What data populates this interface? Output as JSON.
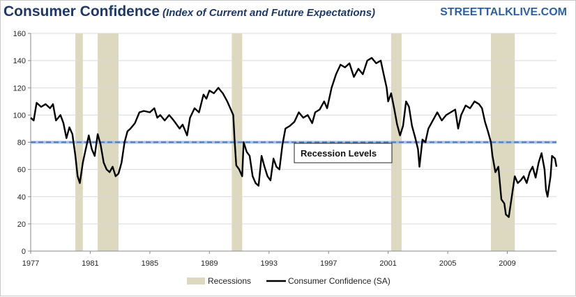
{
  "chart_data": {
    "type": "line",
    "title": "Consumer Confidence",
    "subtitle": "(Index of Current and Future Expectations)",
    "site": "STREETTALKLIVE.COM",
    "xlim": [
      1977,
      2012.3
    ],
    "ylim": [
      0,
      160
    ],
    "x_ticks": [
      1977,
      1981,
      1985,
      1989,
      1993,
      1997,
      2001,
      2005,
      2009
    ],
    "y_ticks": [
      0,
      20,
      40,
      60,
      80,
      100,
      120,
      140,
      160
    ],
    "grid": "horizontal",
    "recession_level": 80,
    "annotation": "Recession Levels",
    "legend": {
      "position": "bottom",
      "recessions_label": "Recessions",
      "series_label": "Consumer Confidence (SA)"
    },
    "recessions": [
      [
        1980.0,
        1980.5
      ],
      [
        1981.5,
        1982.9
      ],
      [
        1990.5,
        1991.2
      ],
      [
        2001.2,
        2001.9
      ],
      [
        2007.9,
        2009.5
      ]
    ],
    "series": [
      {
        "name": "Consumer Confidence (SA)",
        "color": "#000000",
        "points": [
          [
            1977.0,
            98
          ],
          [
            1977.2,
            96
          ],
          [
            1977.4,
            109
          ],
          [
            1977.7,
            106
          ],
          [
            1978.0,
            108
          ],
          [
            1978.3,
            105
          ],
          [
            1978.5,
            108
          ],
          [
            1978.7,
            96
          ],
          [
            1979.0,
            100
          ],
          [
            1979.2,
            94
          ],
          [
            1979.4,
            83
          ],
          [
            1979.6,
            91
          ],
          [
            1979.8,
            86
          ],
          [
            1980.0,
            70
          ],
          [
            1980.15,
            55
          ],
          [
            1980.3,
            50
          ],
          [
            1980.5,
            65
          ],
          [
            1980.7,
            75
          ],
          [
            1980.9,
            85
          ],
          [
            1981.1,
            75
          ],
          [
            1981.3,
            70
          ],
          [
            1981.5,
            86
          ],
          [
            1981.7,
            78
          ],
          [
            1981.9,
            65
          ],
          [
            1982.1,
            60
          ],
          [
            1982.3,
            58
          ],
          [
            1982.5,
            62
          ],
          [
            1982.7,
            55
          ],
          [
            1982.9,
            57
          ],
          [
            1983.1,
            65
          ],
          [
            1983.3,
            80
          ],
          [
            1983.5,
            88
          ],
          [
            1983.7,
            90
          ],
          [
            1984.0,
            94
          ],
          [
            1984.3,
            102
          ],
          [
            1984.6,
            103
          ],
          [
            1985.0,
            102
          ],
          [
            1985.3,
            105
          ],
          [
            1985.5,
            98
          ],
          [
            1985.7,
            100
          ],
          [
            1986.0,
            96
          ],
          [
            1986.3,
            100
          ],
          [
            1986.6,
            96
          ],
          [
            1987.0,
            90
          ],
          [
            1987.2,
            93
          ],
          [
            1987.5,
            85
          ],
          [
            1987.7,
            98
          ],
          [
            1988.0,
            105
          ],
          [
            1988.3,
            102
          ],
          [
            1988.6,
            115
          ],
          [
            1988.8,
            112
          ],
          [
            1989.0,
            118
          ],
          [
            1989.3,
            116
          ],
          [
            1989.6,
            120
          ],
          [
            1989.9,
            116
          ],
          [
            1990.2,
            110
          ],
          [
            1990.4,
            105
          ],
          [
            1990.6,
            100
          ],
          [
            1990.7,
            80
          ],
          [
            1990.8,
            63
          ],
          [
            1991.0,
            60
          ],
          [
            1991.2,
            55
          ],
          [
            1991.3,
            80
          ],
          [
            1991.5,
            73
          ],
          [
            1991.7,
            70
          ],
          [
            1991.9,
            55
          ],
          [
            1992.1,
            50
          ],
          [
            1992.3,
            48
          ],
          [
            1992.5,
            70
          ],
          [
            1992.7,
            62
          ],
          [
            1992.9,
            55
          ],
          [
            1993.1,
            52
          ],
          [
            1993.3,
            68
          ],
          [
            1993.5,
            62
          ],
          [
            1993.7,
            60
          ],
          [
            1993.9,
            78
          ],
          [
            1994.1,
            90
          ],
          [
            1994.4,
            92
          ],
          [
            1994.7,
            95
          ],
          [
            1995.0,
            102
          ],
          [
            1995.3,
            98
          ],
          [
            1995.6,
            100
          ],
          [
            1995.9,
            94
          ],
          [
            1996.1,
            102
          ],
          [
            1996.4,
            104
          ],
          [
            1996.7,
            110
          ],
          [
            1996.9,
            105
          ],
          [
            1997.2,
            120
          ],
          [
            1997.5,
            130
          ],
          [
            1997.8,
            137
          ],
          [
            1998.1,
            135
          ],
          [
            1998.4,
            138
          ],
          [
            1998.7,
            128
          ],
          [
            1999.0,
            134
          ],
          [
            1999.3,
            130
          ],
          [
            1999.6,
            140
          ],
          [
            1999.9,
            142
          ],
          [
            2000.2,
            138
          ],
          [
            2000.5,
            140
          ],
          [
            2000.7,
            130
          ],
          [
            2000.9,
            120
          ],
          [
            2001.0,
            110
          ],
          [
            2001.2,
            116
          ],
          [
            2001.4,
            105
          ],
          [
            2001.6,
            93
          ],
          [
            2001.8,
            85
          ],
          [
            2002.0,
            92
          ],
          [
            2002.2,
            110
          ],
          [
            2002.4,
            106
          ],
          [
            2002.6,
            92
          ],
          [
            2002.8,
            84
          ],
          [
            2003.0,
            75
          ],
          [
            2003.1,
            62
          ],
          [
            2003.3,
            82
          ],
          [
            2003.5,
            80
          ],
          [
            2003.7,
            90
          ],
          [
            2004.0,
            96
          ],
          [
            2004.3,
            102
          ],
          [
            2004.6,
            96
          ],
          [
            2004.9,
            100
          ],
          [
            2005.2,
            102
          ],
          [
            2005.5,
            104
          ],
          [
            2005.7,
            90
          ],
          [
            2005.9,
            100
          ],
          [
            2006.2,
            107
          ],
          [
            2006.5,
            105
          ],
          [
            2006.8,
            110
          ],
          [
            2007.1,
            108
          ],
          [
            2007.3,
            105
          ],
          [
            2007.5,
            95
          ],
          [
            2007.7,
            88
          ],
          [
            2007.9,
            80
          ],
          [
            2008.0,
            70
          ],
          [
            2008.2,
            58
          ],
          [
            2008.4,
            62
          ],
          [
            2008.6,
            38
          ],
          [
            2008.8,
            35
          ],
          [
            2008.9,
            27
          ],
          [
            2009.1,
            25
          ],
          [
            2009.3,
            40
          ],
          [
            2009.5,
            55
          ],
          [
            2009.7,
            50
          ],
          [
            2009.9,
            52
          ],
          [
            2010.1,
            55
          ],
          [
            2010.3,
            50
          ],
          [
            2010.5,
            58
          ],
          [
            2010.7,
            62
          ],
          [
            2010.9,
            54
          ],
          [
            2011.1,
            65
          ],
          [
            2011.3,
            72
          ],
          [
            2011.5,
            60
          ],
          [
            2011.6,
            45
          ],
          [
            2011.7,
            40
          ],
          [
            2011.9,
            55
          ],
          [
            2012.0,
            70
          ],
          [
            2012.2,
            68
          ],
          [
            2012.3,
            62
          ]
        ]
      }
    ]
  }
}
